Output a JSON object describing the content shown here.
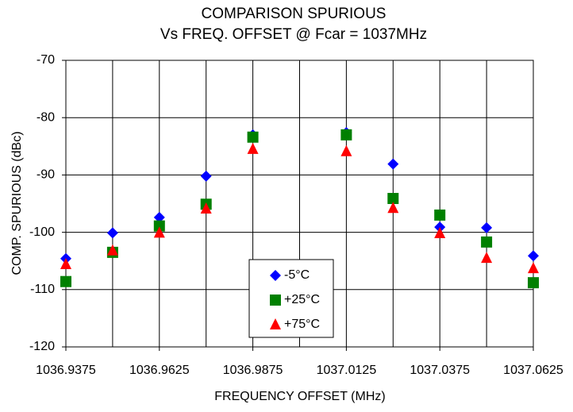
{
  "chart_data": {
    "type": "scatter",
    "title": "COMPARISON SPURIOUS",
    "subtitle": "Vs FREQ. OFFSET @ Fcar = 1037MHz",
    "x_label": "FREQUENCY OFFSET (MHz)",
    "y_label": "COMP. SPURIOUS (dBc)",
    "x": [
      1036.9375,
      1036.95,
      1036.9625,
      1036.975,
      1036.9875,
      1037.0125,
      1037.025,
      1037.0375,
      1037.05,
      1037.0625
    ],
    "series": [
      {
        "name": "-5°C",
        "color": "#0000ff",
        "marker": "diamond",
        "values": [
          -104.6,
          -100.1,
          -97.4,
          -90.2,
          -83.0,
          -82.6,
          -88.1,
          -99.1,
          -99.2,
          -104.1
        ]
      },
      {
        "name": "+25°C",
        "color": "#008000",
        "marker": "square",
        "values": [
          -108.6,
          -103.5,
          -98.9,
          -95.1,
          -83.4,
          -83.0,
          -94.1,
          -97.0,
          -101.7,
          -108.8
        ]
      },
      {
        "name": "+75°C",
        "color": "#ff0000",
        "marker": "triangle",
        "values": [
          -105.6,
          -103.2,
          -100.1,
          -95.9,
          -85.5,
          -85.9,
          -95.8,
          -100.2,
          -104.5,
          -106.3
        ]
      }
    ],
    "xlim": [
      1036.9375,
      1037.0625
    ],
    "xticks": [
      1036.9375,
      1036.9625,
      1036.9875,
      1037.0125,
      1037.0375,
      1037.0625
    ],
    "xgrid": [
      1036.9375,
      1036.95,
      1036.9625,
      1036.975,
      1036.9875,
      1037.0,
      1037.0125,
      1037.025,
      1037.0375,
      1037.05,
      1037.0625
    ],
    "ylim": [
      -120,
      -70
    ],
    "yticks": [
      -70,
      -80,
      -90,
      -100,
      -110,
      -120
    ],
    "grid": true
  }
}
